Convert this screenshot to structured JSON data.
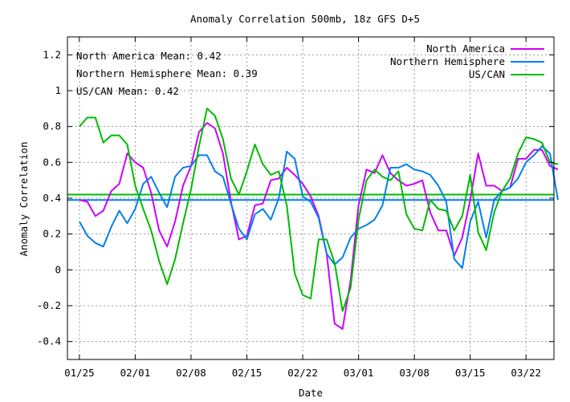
{
  "chart_data": {
    "type": "line",
    "title": "Anomaly Correlation 500mb, 18z GFS  D+5",
    "xlabel": "Date",
    "ylabel": "Anomaly Correlation",
    "ylim": [
      -0.5,
      1.3
    ],
    "xlim": [
      -1.5,
      59.5
    ],
    "grid": true,
    "legend_placement": "top-right",
    "yticks": [
      {
        "v": -0.4,
        "label": "-0.4"
      },
      {
        "v": -0.2,
        "label": "-0.2"
      },
      {
        "v": 0,
        "label": "0"
      },
      {
        "v": 0.2,
        "label": "0.2"
      },
      {
        "v": 0.4,
        "label": "0.4"
      },
      {
        "v": 0.6,
        "label": "0.6"
      },
      {
        "v": 0.8,
        "label": "0.8"
      },
      {
        "v": 1,
        "label": "1"
      },
      {
        "v": 1.2,
        "label": "1.2"
      }
    ],
    "xticks": [
      {
        "i": 0,
        "label": "01/25"
      },
      {
        "i": 7,
        "label": "02/01"
      },
      {
        "i": 14,
        "label": "02/08"
      },
      {
        "i": 21,
        "label": "02/15"
      },
      {
        "i": 28,
        "label": "02/22"
      },
      {
        "i": 35,
        "label": "03/01"
      },
      {
        "i": 42,
        "label": "03/08"
      },
      {
        "i": 49,
        "label": "03/15"
      },
      {
        "i": 56,
        "label": "03/22"
      }
    ],
    "means": [
      {
        "series": "North America",
        "text": "North America Mean: 0.42",
        "value": 0.42
      },
      {
        "series": "Northern Hemisphere",
        "text": "Northern Hemisphere Mean: 0.39",
        "value": 0.39
      },
      {
        "series": "US/CAN",
        "text": "US/CAN Mean: 0.42",
        "value": 0.42
      }
    ],
    "series": [
      {
        "name": "North America",
        "color": "#cc00ff",
        "values": [
          0.39,
          0.38,
          0.3,
          0.33,
          0.44,
          0.48,
          0.65,
          0.6,
          0.57,
          0.43,
          0.22,
          0.13,
          0.27,
          0.47,
          0.58,
          0.77,
          0.82,
          0.79,
          0.65,
          0.38,
          0.17,
          0.19,
          0.36,
          0.37,
          0.5,
          0.51,
          0.57,
          0.53,
          0.48,
          0.41,
          0.3,
          0.09,
          -0.3,
          -0.33,
          -0.06,
          0.36,
          0.56,
          0.54,
          0.64,
          0.54,
          0.5,
          0.47,
          0.48,
          0.5,
          0.32,
          0.22,
          0.22,
          0.08,
          0.18,
          0.39,
          0.65,
          0.47,
          0.47,
          0.44,
          0.46,
          0.62,
          0.62,
          0.67,
          0.67,
          0.58,
          0.56
        ]
      },
      {
        "name": "Northern Hemisphere",
        "color": "#0080ee",
        "values": [
          0.27,
          0.19,
          0.15,
          0.13,
          0.24,
          0.33,
          0.26,
          0.34,
          0.48,
          0.52,
          0.43,
          0.35,
          0.52,
          0.57,
          0.58,
          0.64,
          0.64,
          0.55,
          0.52,
          0.37,
          0.23,
          0.17,
          0.31,
          0.34,
          0.28,
          0.4,
          0.66,
          0.62,
          0.41,
          0.38,
          0.29,
          0.09,
          0.03,
          0.07,
          0.18,
          0.23,
          0.25,
          0.28,
          0.36,
          0.57,
          0.57,
          0.59,
          0.56,
          0.55,
          0.53,
          0.47,
          0.38,
          0.06,
          0.01,
          0.27,
          0.38,
          0.18,
          0.39,
          0.44,
          0.46,
          0.51,
          0.6,
          0.64,
          0.69,
          0.65,
          0.39
        ]
      },
      {
        "name": "US/CAN",
        "color": "#00bb00",
        "values": [
          0.8,
          0.85,
          0.85,
          0.71,
          0.75,
          0.75,
          0.7,
          0.47,
          0.34,
          0.22,
          0.05,
          -0.08,
          0.06,
          0.26,
          0.45,
          0.69,
          0.9,
          0.86,
          0.73,
          0.51,
          0.42,
          0.55,
          0.7,
          0.59,
          0.53,
          0.55,
          0.36,
          -0.02,
          -0.14,
          -0.16,
          0.17,
          0.17,
          0.04,
          -0.23,
          -0.1,
          0.28,
          0.5,
          0.56,
          0.52,
          0.5,
          0.55,
          0.31,
          0.23,
          0.22,
          0.39,
          0.34,
          0.33,
          0.22,
          0.3,
          0.53,
          0.21,
          0.11,
          0.32,
          0.44,
          0.51,
          0.65,
          0.74,
          0.73,
          0.71,
          0.6,
          0.59
        ]
      }
    ]
  }
}
